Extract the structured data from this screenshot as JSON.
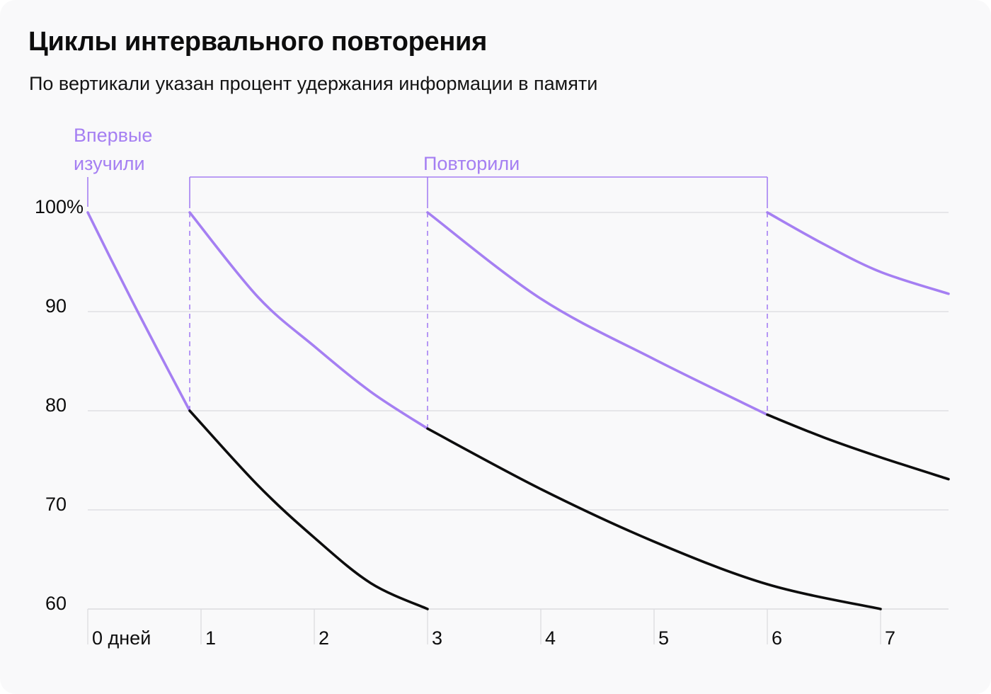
{
  "title": "Циклы интервального повторения",
  "subtitle": "По вертикали указан процент удержания информации в памяти",
  "colors": {
    "background": "#f9f9fa",
    "review": "#a57ff2",
    "forgetting": "#0d0d0d",
    "grid": "#dcdcdf",
    "text": "#0d0d0d"
  },
  "chart_data": {
    "type": "line",
    "xlim": [
      0,
      7.6
    ],
    "ylim": [
      60,
      100
    ],
    "grid": true,
    "y_ticks": [
      {
        "value": 100,
        "label": "100%"
      },
      {
        "value": 90,
        "label": "90"
      },
      {
        "value": 80,
        "label": "80"
      },
      {
        "value": 70,
        "label": "70"
      },
      {
        "value": 60,
        "label": "60"
      }
    ],
    "x_ticks": [
      {
        "value": 0,
        "label": "0 дней"
      },
      {
        "value": 1,
        "label": "1"
      },
      {
        "value": 2,
        "label": "2"
      },
      {
        "value": 3,
        "label": "3"
      },
      {
        "value": 4,
        "label": "4"
      },
      {
        "value": 5,
        "label": "5"
      },
      {
        "value": 6,
        "label": "6"
      },
      {
        "value": 7,
        "label": "7"
      }
    ],
    "annotations": {
      "first_learned": [
        "Впервые",
        "изучили"
      ],
      "repeated": "Повторили",
      "first_learned_x": 0,
      "review_points_x": [
        0.9,
        3,
        6
      ]
    },
    "series": [
      {
        "kind": "review",
        "x": [
          0,
          0.2,
          0.4,
          0.6,
          0.9
        ],
        "y": [
          100,
          95.4,
          90.9,
          86.5,
          80
        ]
      },
      {
        "kind": "forgetting",
        "x": [
          0.9,
          1.5,
          2,
          2.5,
          3
        ],
        "y": [
          80,
          72.5,
          67.2,
          62.6,
          60
        ]
      },
      {
        "kind": "review",
        "x": [
          0.9,
          1.5,
          2,
          2.5,
          3
        ],
        "y": [
          100,
          91.5,
          86.5,
          81.9,
          78.2
        ]
      },
      {
        "kind": "forgetting",
        "x": [
          3,
          4,
          5,
          6,
          7
        ],
        "y": [
          78.2,
          72.1,
          66.8,
          62.5,
          60
        ]
      },
      {
        "kind": "review",
        "x": [
          3,
          4,
          5,
          6
        ],
        "y": [
          100,
          91.3,
          85.2,
          79.6
        ]
      },
      {
        "kind": "forgetting",
        "x": [
          6,
          6.5,
          7,
          7.6
        ],
        "y": [
          79.6,
          77.3,
          75.3,
          73.1
        ]
      },
      {
        "kind": "review",
        "x": [
          6,
          6.5,
          7,
          7.6
        ],
        "y": [
          100,
          96.8,
          94,
          91.8
        ]
      }
    ]
  }
}
